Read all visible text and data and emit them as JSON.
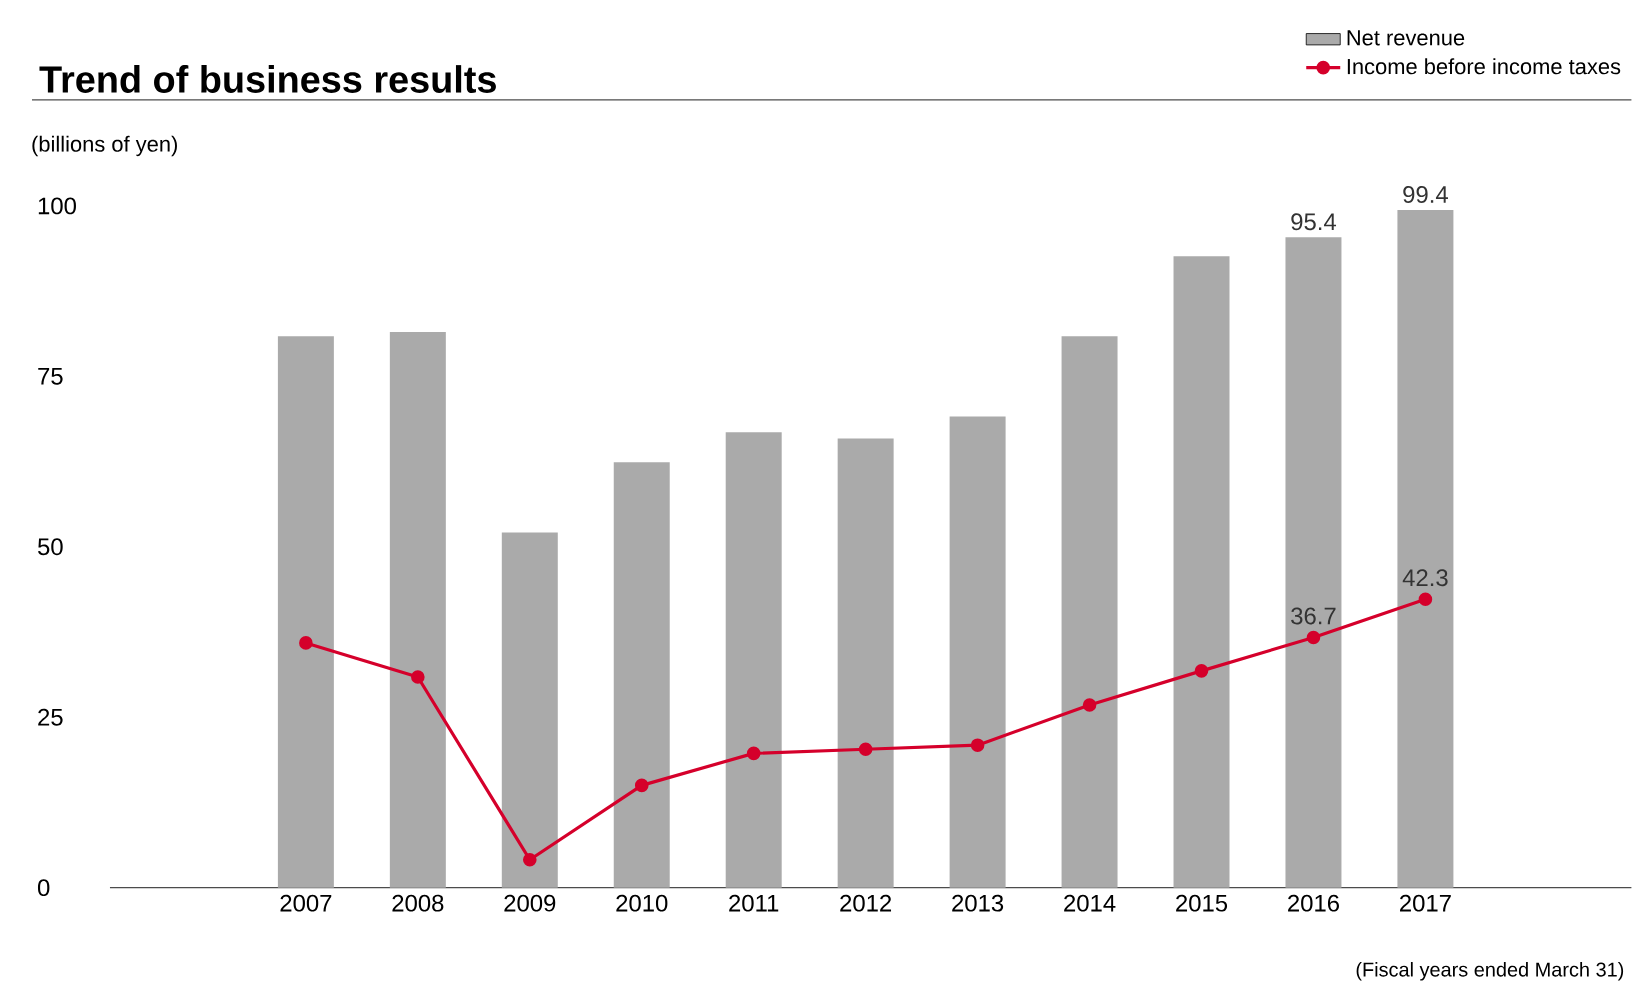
{
  "chart_data": {
    "type": "bar",
    "title": "Trend of business results",
    "ylabel": "(billions of yen)",
    "annotations": [
      "(Fiscal years ended March 31)"
    ],
    "categories": [
      "2007",
      "2008",
      "2009",
      "2010",
      "2011",
      "2012",
      "2013",
      "2014",
      "2015",
      "2016",
      "2017"
    ],
    "series": [
      {
        "name": "Net revenue",
        "color": "#aaaaaa",
        "values": [
          80.9,
          81.5,
          52.1,
          62.4,
          66.8,
          65.9,
          69.1,
          80.9,
          92.6,
          95.4,
          99.4
        ],
        "value_labels": [
          null,
          null,
          null,
          null,
          null,
          null,
          null,
          null,
          null,
          "95.4",
          "99.4"
        ]
      },
      {
        "name": "Income before income taxes",
        "type": "line",
        "color": "#d5002b",
        "marker": "circle",
        "values": [
          35.9,
          30.9,
          4.1,
          15.0,
          19.7,
          20.3,
          20.9,
          26.8,
          31.8,
          36.7,
          42.3
        ],
        "value_labels": [
          null,
          null,
          null,
          null,
          null,
          null,
          null,
          null,
          null,
          "36.7",
          "42.3"
        ]
      }
    ],
    "ylim": [
      0,
      100
    ],
    "yticks": [
      0,
      25,
      50,
      75,
      100
    ],
    "legend": "top right"
  }
}
